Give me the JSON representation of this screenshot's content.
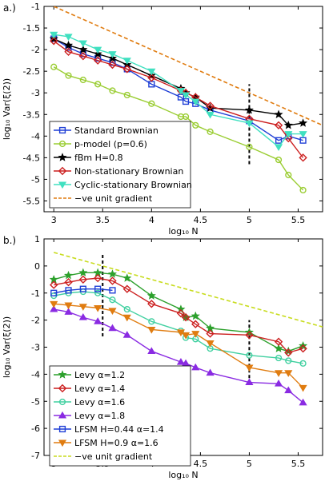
{
  "chart_data": [
    {
      "type": "line",
      "panel_label": "a.)",
      "xlabel": "log₁₀ N",
      "ylabel": "log₁₀ Var(ξ(2))",
      "xlim": [
        2.9,
        5.75
      ],
      "ylim": [
        -5.75,
        -1
      ],
      "xticks": [
        3,
        3.5,
        4,
        4.5,
        5,
        5.5
      ],
      "xtick_labels": [
        "3",
        "3.5",
        "4",
        "4.5",
        "5",
        "5.5"
      ],
      "yticks": [
        -5.5,
        -5,
        -4.5,
        -4,
        -3.5,
        -3,
        -2.5,
        -2,
        -1.5,
        -1
      ],
      "ytick_labels": [
        "-5.5",
        "-5",
        "-4.5",
        "-4",
        "-3.5",
        "-3",
        "-2.5",
        "-2",
        "-1.5",
        "-1"
      ],
      "legend_position": "lower-left",
      "marker_line": {
        "x": 5,
        "y": [
          -4.65,
          -2.8
        ]
      },
      "series": [
        {
          "name": "Standard Brownian",
          "color": "#1f3fd6",
          "marker": "square",
          "x": [
            3,
            3.15,
            3.3,
            3.45,
            3.6,
            3.75,
            4.0,
            4.3,
            4.35,
            4.45,
            4.6,
            5.0,
            5.3,
            5.4,
            5.55
          ],
          "y": [
            -1.75,
            -1.95,
            -2.1,
            -2.2,
            -2.3,
            -2.45,
            -2.8,
            -3.1,
            -3.2,
            -3.25,
            -3.4,
            -3.65,
            -4.1,
            -4.0,
            -4.1
          ]
        },
        {
          "name": "p-model (p=0.6)",
          "color": "#9acd32",
          "marker": "circle",
          "x": [
            3,
            3.15,
            3.3,
            3.45,
            3.6,
            3.75,
            4.0,
            4.3,
            4.35,
            4.45,
            4.6,
            5.0,
            5.3,
            5.4,
            5.55
          ],
          "y": [
            -2.4,
            -2.6,
            -2.7,
            -2.8,
            -2.95,
            -3.05,
            -3.25,
            -3.55,
            -3.55,
            -3.75,
            -3.9,
            -4.25,
            -4.55,
            -4.9,
            -5.25
          ]
        },
        {
          "name": "fBm H=0.8",
          "color": "#000000",
          "marker": "star",
          "x": [
            3,
            3.15,
            3.3,
            3.45,
            3.6,
            3.75,
            4.0,
            4.3,
            4.35,
            4.45,
            4.6,
            5.0,
            5.3,
            5.4,
            5.55
          ],
          "y": [
            -1.75,
            -1.9,
            -2.0,
            -2.1,
            -2.2,
            -2.35,
            -2.6,
            -2.9,
            -3.0,
            -3.1,
            -3.35,
            -3.4,
            -3.5,
            -3.75,
            -3.7
          ]
        },
        {
          "name": "Non-stationary Brownian",
          "color": "#cc1f1f",
          "marker": "diamond",
          "x": [
            3,
            3.15,
            3.3,
            3.45,
            3.6,
            3.75,
            4.0,
            4.3,
            4.35,
            4.45,
            4.6,
            5.0,
            5.3,
            5.4,
            5.55
          ],
          "y": [
            -1.8,
            -2.05,
            -2.15,
            -2.25,
            -2.35,
            -2.45,
            -2.65,
            -2.95,
            -3.0,
            -3.1,
            -3.3,
            -3.6,
            -3.75,
            -4.05,
            -4.5
          ]
        },
        {
          "name": "Cyclic-stationary Brownian",
          "color": "#40e0c0",
          "marker": "triangle-down",
          "x": [
            3,
            3.15,
            3.3,
            3.45,
            3.6,
            3.75,
            4.0,
            4.3,
            4.35,
            4.45,
            4.6,
            5.0,
            5.3,
            5.4,
            5.55
          ],
          "y": [
            -1.65,
            -1.7,
            -1.85,
            -2.0,
            -2.1,
            -2.25,
            -2.5,
            -2.95,
            -3.05,
            -3.2,
            -3.5,
            -3.7,
            -4.25,
            -3.95,
            -3.95
          ]
        },
        {
          "name": "−ve unit gradient",
          "color": "#e07c10",
          "marker": "none",
          "dashed": true,
          "x": [
            3,
            5.75
          ],
          "y": [
            -1,
            -3.75
          ]
        }
      ]
    },
    {
      "type": "line",
      "panel_label": "b.)",
      "xlabel": "log₁₀ N",
      "ylabel": "log₁₀ Var(ξ(2))",
      "xlim": [
        2.9,
        5.75
      ],
      "ylim": [
        -7,
        1
      ],
      "xticks": [
        3,
        3.5,
        4,
        4.5,
        5,
        5.5
      ],
      "xtick_labels": [
        "3",
        "3.5",
        "4",
        "4.5",
        "5",
        "5.5"
      ],
      "yticks": [
        -7,
        -6,
        -5,
        -4,
        -3,
        -2,
        -1,
        0,
        1
      ],
      "ytick_labels": [
        "-7",
        "-6",
        "-5",
        "-4",
        "-3",
        "-2",
        "-1",
        "0",
        "1"
      ],
      "legend_position": "lower-left",
      "marker_lines": [
        {
          "x": 3.5,
          "y": [
            -2.6,
            0.5
          ]
        },
        {
          "x": 5,
          "y": [
            -4.35,
            -2.0
          ]
        }
      ],
      "series": [
        {
          "name": "Levy α=1.2",
          "color": "#2ca02c",
          "marker": "star",
          "x": [
            3,
            3.15,
            3.3,
            3.45,
            3.6,
            3.75,
            4.0,
            4.3,
            4.35,
            4.45,
            4.6,
            5.0,
            5.3,
            5.4,
            5.55
          ],
          "y": [
            -0.5,
            -0.35,
            -0.25,
            -0.25,
            -0.3,
            -0.45,
            -1.1,
            -1.6,
            -1.9,
            -1.85,
            -2.3,
            -2.45,
            -3.05,
            -3.15,
            -2.95
          ]
        },
        {
          "name": "Levy α=1.4",
          "color": "#cc1f1f",
          "marker": "diamond",
          "x": [
            3,
            3.15,
            3.3,
            3.45,
            3.6,
            3.75,
            4.0,
            4.3,
            4.35,
            4.45,
            4.6,
            5.0,
            5.3,
            5.4,
            5.55
          ],
          "y": [
            -0.7,
            -0.6,
            -0.5,
            -0.45,
            -0.55,
            -0.85,
            -1.4,
            -1.75,
            -1.9,
            -2.15,
            -2.5,
            -2.55,
            -2.8,
            -3.2,
            -3.05
          ]
        },
        {
          "name": "Levy α=1.6",
          "color": "#40d0a0",
          "marker": "circle",
          "x": [
            3,
            3.15,
            3.3,
            3.45,
            3.6,
            3.75,
            4.0,
            4.3,
            4.35,
            4.45,
            4.6,
            5.0,
            5.3,
            5.4,
            5.55
          ],
          "y": [
            -1.1,
            -1.0,
            -0.95,
            -1.0,
            -1.25,
            -1.6,
            -2.05,
            -2.4,
            -2.65,
            -2.7,
            -3.05,
            -3.3,
            -3.4,
            -3.5,
            -3.6
          ]
        },
        {
          "name": "Levy α=1.8",
          "color": "#8a2be2",
          "marker": "triangle-up",
          "x": [
            3,
            3.15,
            3.3,
            3.45,
            3.6,
            3.75,
            4.0,
            4.3,
            4.35,
            4.45,
            4.6,
            5.0,
            5.3,
            5.4,
            5.55
          ],
          "y": [
            -1.6,
            -1.7,
            -1.9,
            -2.05,
            -2.3,
            -2.55,
            -3.15,
            -3.55,
            -3.6,
            -3.75,
            -3.95,
            -4.3,
            -4.35,
            -4.6,
            -5.05
          ]
        },
        {
          "name": "LFSM H=0.44 α=1.4",
          "color": "#1f3fd6",
          "marker": "square",
          "x": [
            3,
            3.15,
            3.3,
            3.45,
            3.6
          ],
          "y": [
            -1.0,
            -0.9,
            -0.85,
            -0.85,
            -0.9
          ]
        },
        {
          "name": "LFSM H=0.9 α=1.6",
          "color": "#e07c10",
          "marker": "triangle-down",
          "x": [
            3,
            3.15,
            3.3,
            3.45,
            3.6,
            3.75,
            4.0,
            4.3,
            4.35,
            4.45,
            4.6,
            5.0,
            5.3,
            5.4,
            5.55
          ],
          "y": [
            -1.4,
            -1.45,
            -1.5,
            -1.55,
            -1.65,
            -1.9,
            -2.35,
            -2.45,
            -2.55,
            -2.5,
            -2.85,
            -3.75,
            -3.95,
            -3.95,
            -4.5
          ]
        },
        {
          "name": "−ve unit gradient",
          "color": "#c8dc1e",
          "marker": "none",
          "dashed": true,
          "x": [
            3,
            5.75
          ],
          "y": [
            0.5,
            -2.25
          ]
        }
      ]
    }
  ]
}
